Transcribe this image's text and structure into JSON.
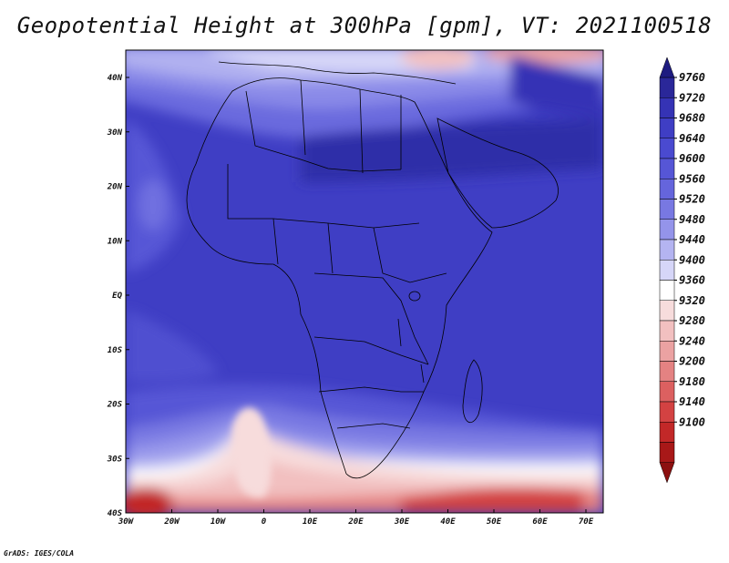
{
  "title": "Geopotential Height at 300hPa [gpm], VT: 2021100518",
  "credit": "GrADS: IGES/COLA",
  "axes": {
    "lon_labels": [
      "30W",
      "20W",
      "10W",
      "0",
      "10E",
      "20E",
      "30E",
      "40E",
      "50E",
      "60E",
      "70E"
    ],
    "lat_labels": [
      "40N",
      "30N",
      "20N",
      "10N",
      "EQ",
      "10S",
      "20S",
      "30S",
      "40S"
    ]
  },
  "colorbar": {
    "levels": [
      9760,
      9720,
      9680,
      9640,
      9600,
      9560,
      9520,
      9480,
      9440,
      9400,
      9360,
      9320,
      9280,
      9240,
      9200,
      9180,
      9140,
      9100
    ],
    "labels": [
      "9760",
      "9720",
      "9680",
      "9640",
      "9600",
      "9560",
      "9520",
      "9480",
      "9440",
      "9400",
      "9360",
      "9320",
      "9280",
      "9240",
      "9200",
      "9180",
      "9140",
      "9100"
    ],
    "colors": [
      "#2a2799",
      "#3533b5",
      "#3f3ec4",
      "#4a4ad0",
      "#5656d6",
      "#6565dc",
      "#7878e2",
      "#9494ea",
      "#b4b4f1",
      "#d6d6f8",
      "#ffffff",
      "#f7dcdc",
      "#f2c0c0",
      "#eba2a2",
      "#e48282",
      "#dc6060",
      "#d34242",
      "#c22828",
      "#a81818"
    ]
  },
  "colors": {
    "background": "#3f3ec4",
    "border_lines": "#000000"
  }
}
